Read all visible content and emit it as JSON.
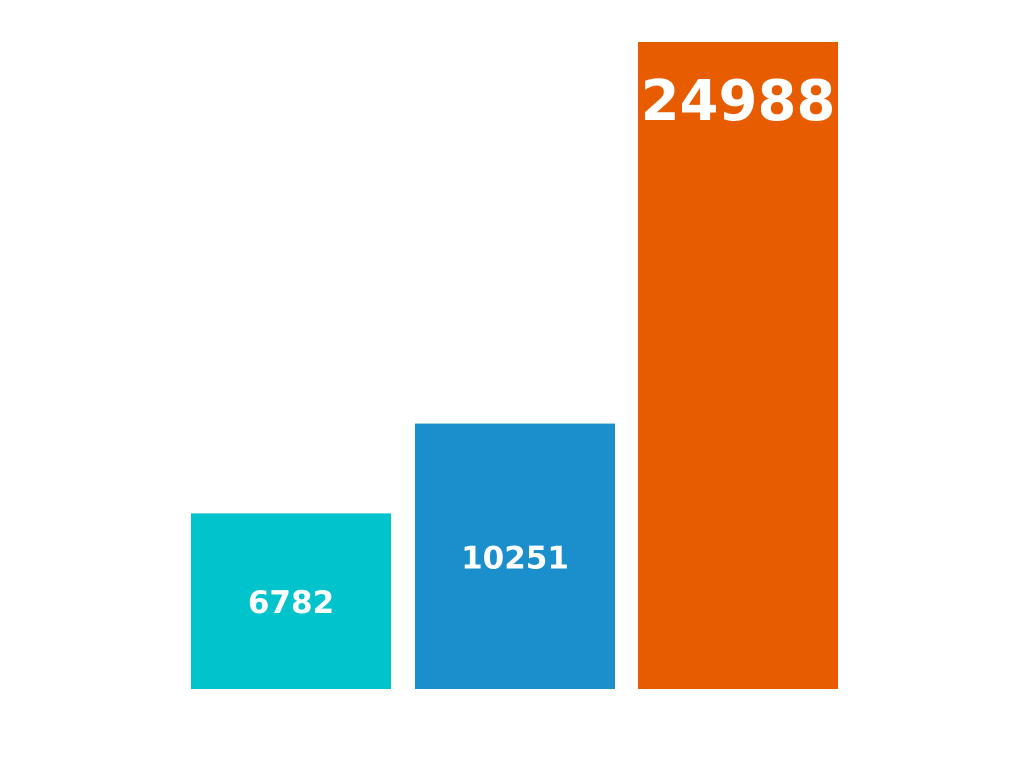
{
  "chart_data": {
    "type": "bar",
    "categories": [
      "",
      "",
      ""
    ],
    "values": [
      6782,
      10251,
      24988
    ],
    "data_labels": [
      "6782",
      "10251",
      "24988"
    ],
    "colors": [
      "#00C3CB",
      "#1A8FCB",
      "#E85C00"
    ],
    "title": "",
    "xlabel": "",
    "ylabel": "",
    "ylim": [
      0,
      24988
    ],
    "grid": false,
    "legend": "none",
    "axes_visible": false
  }
}
